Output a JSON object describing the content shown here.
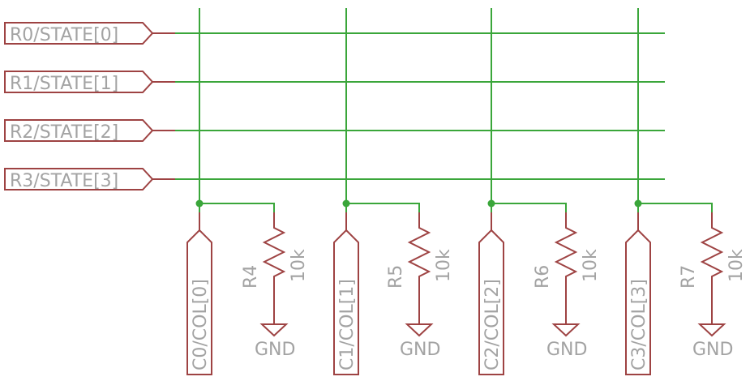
{
  "diagram": {
    "colors": {
      "net": "#3aa63a",
      "part": "#9e4343",
      "label": "#a3a3a3",
      "background": "#ffffff"
    },
    "row_ports": [
      "R0/STATE[0]",
      "R1/STATE[1]",
      "R2/STATE[2]",
      "R3/STATE[3]"
    ],
    "column_ports": [
      "C0/COL[0]",
      "C1/COL[1]",
      "C2/COL[2]",
      "C3/COL[3]"
    ],
    "resistors": [
      {
        "name": "R4",
        "value": "10k",
        "ground": "GND"
      },
      {
        "name": "R5",
        "value": "10k",
        "ground": "GND"
      },
      {
        "name": "R6",
        "value": "10k",
        "ground": "GND"
      },
      {
        "name": "R7",
        "value": "10k",
        "ground": "GND"
      }
    ]
  }
}
